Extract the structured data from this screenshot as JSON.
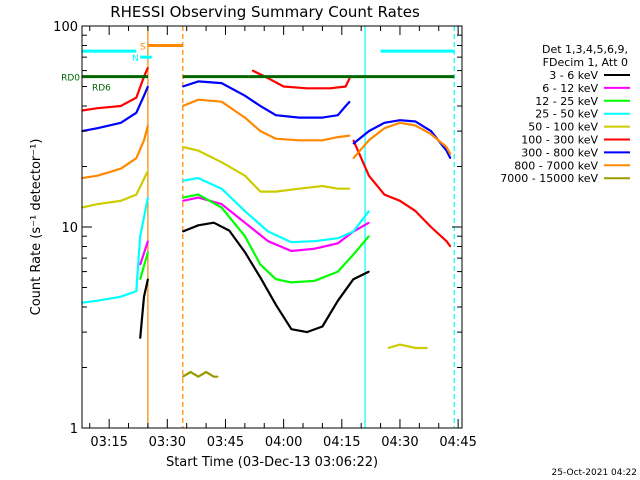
{
  "chart_data": {
    "type": "line",
    "title": "RHESSI Observing Summary Count Rates",
    "xlabel": "Start Time (03-Dec-13 03:06:22)",
    "ylabel": "Count Rate (s⁻¹ detector⁻¹)",
    "yscale": "log",
    "ylim": [
      1,
      100
    ],
    "xlim": [
      "03:08",
      "04:46"
    ],
    "y_ticks": [
      {
        "value": 1,
        "label": "1"
      },
      {
        "value": 10,
        "label": "10"
      },
      {
        "value": 100,
        "label": "100"
      }
    ],
    "x_ticks": [
      {
        "value": "03:15",
        "label": "03:15"
      },
      {
        "value": "03:30",
        "label": "03:30"
      },
      {
        "value": "03:45",
        "label": "03:45"
      },
      {
        "value": "04:00",
        "label": "04:00"
      },
      {
        "value": "04:15",
        "label": "04:15"
      },
      {
        "value": "04:30",
        "label": "04:30"
      },
      {
        "value": "04:45",
        "label": "04:45"
      }
    ],
    "legend_header": [
      "Det 1,3,4,5,6,9,",
      "FDecim 1, Att 0"
    ],
    "legend_position": "right",
    "series": [
      {
        "name": "3 - 6 keV",
        "color": "#000000",
        "points": [
          [
            "03:10",
            null
          ],
          [
            "03:11",
            null
          ],
          [
            "03:23",
            2.8
          ],
          [
            "03:24",
            4.5
          ],
          [
            "03:25",
            5.5
          ],
          [
            "03:26",
            null
          ],
          [
            "03:34",
            9.5
          ],
          [
            "03:38",
            10.2
          ],
          [
            "03:42",
            10.5
          ],
          [
            "03:46",
            9.6
          ],
          [
            "03:50",
            7.5
          ],
          [
            "03:54",
            5.6
          ],
          [
            "03:58",
            4.1
          ],
          [
            "04:02",
            3.1
          ],
          [
            "04:06",
            3.0
          ],
          [
            "04:10",
            3.2
          ],
          [
            "04:14",
            4.3
          ],
          [
            "04:18",
            5.5
          ],
          [
            "04:22",
            6.0
          ],
          [
            "04:24",
            null
          ]
        ]
      },
      {
        "name": "6 - 12 keV",
        "color": "#ff00ff",
        "points": [
          [
            "03:23",
            6.5
          ],
          [
            "03:25",
            8.5
          ],
          [
            "03:26",
            null
          ],
          [
            "03:34",
            13.5
          ],
          [
            "03:38",
            14.0
          ],
          [
            "03:44",
            13.0
          ],
          [
            "03:50",
            10.5
          ],
          [
            "03:56",
            8.5
          ],
          [
            "04:02",
            7.6
          ],
          [
            "04:08",
            7.8
          ],
          [
            "04:14",
            8.3
          ],
          [
            "04:18",
            9.5
          ],
          [
            "04:22",
            10.5
          ],
          [
            "04:24",
            null
          ]
        ]
      },
      {
        "name": "12 - 25 keV",
        "color": "#00ff00",
        "points": [
          [
            "03:23",
            5.5
          ],
          [
            "03:25",
            7.5
          ],
          [
            "03:26",
            null
          ],
          [
            "03:34",
            14.0
          ],
          [
            "03:38",
            14.5
          ],
          [
            "03:44",
            12.5
          ],
          [
            "03:50",
            9.0
          ],
          [
            "03:54",
            6.5
          ],
          [
            "03:58",
            5.5
          ],
          [
            "04:02",
            5.3
          ],
          [
            "04:08",
            5.4
          ],
          [
            "04:14",
            6.0
          ],
          [
            "04:18",
            7.3
          ],
          [
            "04:22",
            9.0
          ],
          [
            "04:24",
            null
          ]
        ]
      },
      {
        "name": "25 - 50 keV",
        "color": "#00ffff",
        "points": [
          [
            "03:08",
            4.2
          ],
          [
            "03:12",
            4.3
          ],
          [
            "03:18",
            4.5
          ],
          [
            "03:22",
            4.8
          ],
          [
            "03:23",
            9.0
          ],
          [
            "03:25",
            14.0
          ],
          [
            "03:26",
            null
          ],
          [
            "03:34",
            17.0
          ],
          [
            "03:38",
            17.5
          ],
          [
            "03:44",
            15.5
          ],
          [
            "03:50",
            12.0
          ],
          [
            "03:56",
            9.5
          ],
          [
            "04:02",
            8.4
          ],
          [
            "04:08",
            8.5
          ],
          [
            "04:14",
            8.8
          ],
          [
            "04:18",
            9.5
          ],
          [
            "04:22",
            12.0
          ],
          [
            "04:24",
            null
          ]
        ]
      },
      {
        "name": "50 - 100 keV",
        "color": "#cccc00",
        "points": [
          [
            "03:08",
            12.5
          ],
          [
            "03:12",
            13.0
          ],
          [
            "03:18",
            13.5
          ],
          [
            "03:22",
            14.5
          ],
          [
            "03:25",
            19.0
          ],
          [
            "03:26",
            null
          ],
          [
            "03:34",
            25.0
          ],
          [
            "03:38",
            24.0
          ],
          [
            "03:44",
            21.0
          ],
          [
            "03:50",
            18.0
          ],
          [
            "03:54",
            15.0
          ],
          [
            "03:58",
            15.0
          ],
          [
            "04:04",
            15.5
          ],
          [
            "04:10",
            16.0
          ],
          [
            "04:14",
            15.5
          ],
          [
            "04:17",
            15.5
          ],
          [
            "04:18",
            null
          ],
          [
            "04:27",
            2.5
          ],
          [
            "04:30",
            2.6
          ],
          [
            "04:34",
            2.5
          ],
          [
            "04:37",
            2.5
          ]
        ]
      },
      {
        "name": "100 - 300 keV",
        "color": "#ff0000",
        "points": [
          [
            "03:08",
            38.0
          ],
          [
            "03:12",
            39.0
          ],
          [
            "03:18",
            40.0
          ],
          [
            "03:22",
            44.0
          ],
          [
            "03:24",
            56.0
          ],
          [
            "03:25",
            62.0
          ],
          [
            "03:26",
            null
          ],
          [
            "03:52",
            60.0
          ],
          [
            "03:56",
            55.0
          ],
          [
            "04:00",
            50.0
          ],
          [
            "04:06",
            49.0
          ],
          [
            "04:12",
            49.0
          ],
          [
            "04:16",
            50.0
          ],
          [
            "04:17",
            55.0
          ],
          [
            "04:18",
            null
          ],
          [
            "04:18",
            27.0
          ],
          [
            "04:22",
            18.0
          ],
          [
            "04:26",
            14.5
          ],
          [
            "04:30",
            13.5
          ],
          [
            "04:34",
            12.0
          ],
          [
            "04:38",
            10.0
          ],
          [
            "04:42",
            8.5
          ],
          [
            "04:43",
            8.0
          ]
        ]
      },
      {
        "name": "300 - 800 keV",
        "color": "#0000ff",
        "points": [
          [
            "03:08",
            30.0
          ],
          [
            "03:12",
            31.0
          ],
          [
            "03:18",
            33.0
          ],
          [
            "03:22",
            37.0
          ],
          [
            "03:24",
            45.0
          ],
          [
            "03:25",
            50.0
          ],
          [
            "03:26",
            null
          ],
          [
            "03:34",
            50.0
          ],
          [
            "03:38",
            53.0
          ],
          [
            "03:44",
            52.0
          ],
          [
            "03:50",
            45.0
          ],
          [
            "03:54",
            40.0
          ],
          [
            "03:58",
            36.0
          ],
          [
            "04:04",
            35.0
          ],
          [
            "04:10",
            35.0
          ],
          [
            "04:14",
            36.0
          ],
          [
            "04:16",
            40.0
          ],
          [
            "04:17",
            42.0
          ],
          [
            "04:18",
            null
          ],
          [
            "04:18",
            26.0
          ],
          [
            "04:22",
            30.0
          ],
          [
            "04:26",
            33.0
          ],
          [
            "04:30",
            34.0
          ],
          [
            "04:34",
            33.5
          ],
          [
            "04:38",
            30.0
          ],
          [
            "04:42",
            24.0
          ],
          [
            "04:43",
            22.0
          ]
        ]
      },
      {
        "name": "800 - 7000 keV",
        "color": "#ff8800",
        "points": [
          [
            "03:08",
            17.5
          ],
          [
            "03:12",
            18.0
          ],
          [
            "03:18",
            19.5
          ],
          [
            "03:22",
            22.0
          ],
          [
            "03:24",
            27.0
          ],
          [
            "03:25",
            32.0
          ],
          [
            "03:26",
            null
          ],
          [
            "03:34",
            40.0
          ],
          [
            "03:38",
            43.0
          ],
          [
            "03:44",
            42.0
          ],
          [
            "03:50",
            35.0
          ],
          [
            "03:54",
            30.0
          ],
          [
            "03:58",
            27.5
          ],
          [
            "04:04",
            27.0
          ],
          [
            "04:10",
            27.0
          ],
          [
            "04:14",
            28.0
          ],
          [
            "04:17",
            28.5
          ],
          [
            "04:18",
            null
          ],
          [
            "04:18",
            22.0
          ],
          [
            "04:22",
            27.0
          ],
          [
            "04:26",
            31.0
          ],
          [
            "04:30",
            33.0
          ],
          [
            "04:34",
            32.0
          ],
          [
            "04:38",
            29.0
          ],
          [
            "04:42",
            25.0
          ],
          [
            "04:43",
            23.0
          ]
        ]
      },
      {
        "name": "7000 - 15000 keV",
        "color": "#999900",
        "points": [
          [
            "03:34",
            1.8
          ],
          [
            "03:36",
            1.9
          ],
          [
            "03:38",
            1.8
          ],
          [
            "03:40",
            1.9
          ],
          [
            "03:42",
            1.8
          ],
          [
            "03:43",
            1.8
          ]
        ]
      }
    ],
    "state_bars": [
      {
        "label": "RD0",
        "color": "#006600",
        "segments": [
          [
            "03:08",
            "03:25"
          ],
          [
            "03:34",
            "03:51"
          ],
          [
            "03:51",
            "04:18"
          ],
          [
            "04:18",
            "04:44"
          ]
        ],
        "value": 56.0
      },
      {
        "label": "RD6",
        "color": "#006600",
        "segments": [],
        "value": 50.0
      },
      {
        "label": "",
        "color": "#00ffff",
        "segments": [
          [
            "03:08",
            "03:22"
          ],
          [
            "04:25",
            "04:44"
          ]
        ],
        "value": 75.0
      },
      {
        "label": "S",
        "color": "#ff8800",
        "segments": [
          [
            "03:25",
            "03:34"
          ]
        ],
        "value": 80.0
      },
      {
        "label": "N",
        "color": "#00ffff",
        "segments": [
          [
            "03:23",
            "03:26"
          ]
        ],
        "value": 70.0
      }
    ],
    "vertical_lines": [
      {
        "x": "03:25",
        "color": "#00ffff",
        "style": "dashed"
      },
      {
        "x": "03:25",
        "color": "#ff8800",
        "style": "solid"
      },
      {
        "x": "03:34",
        "color": "#ff8800",
        "style": "dashed"
      },
      {
        "x": "04:21",
        "color": "#00ffff",
        "style": "solid"
      },
      {
        "x": "04:44",
        "color": "#00ffff",
        "style": "dashed"
      }
    ],
    "footer_stamp": "25-Oct-2021 04:22"
  }
}
